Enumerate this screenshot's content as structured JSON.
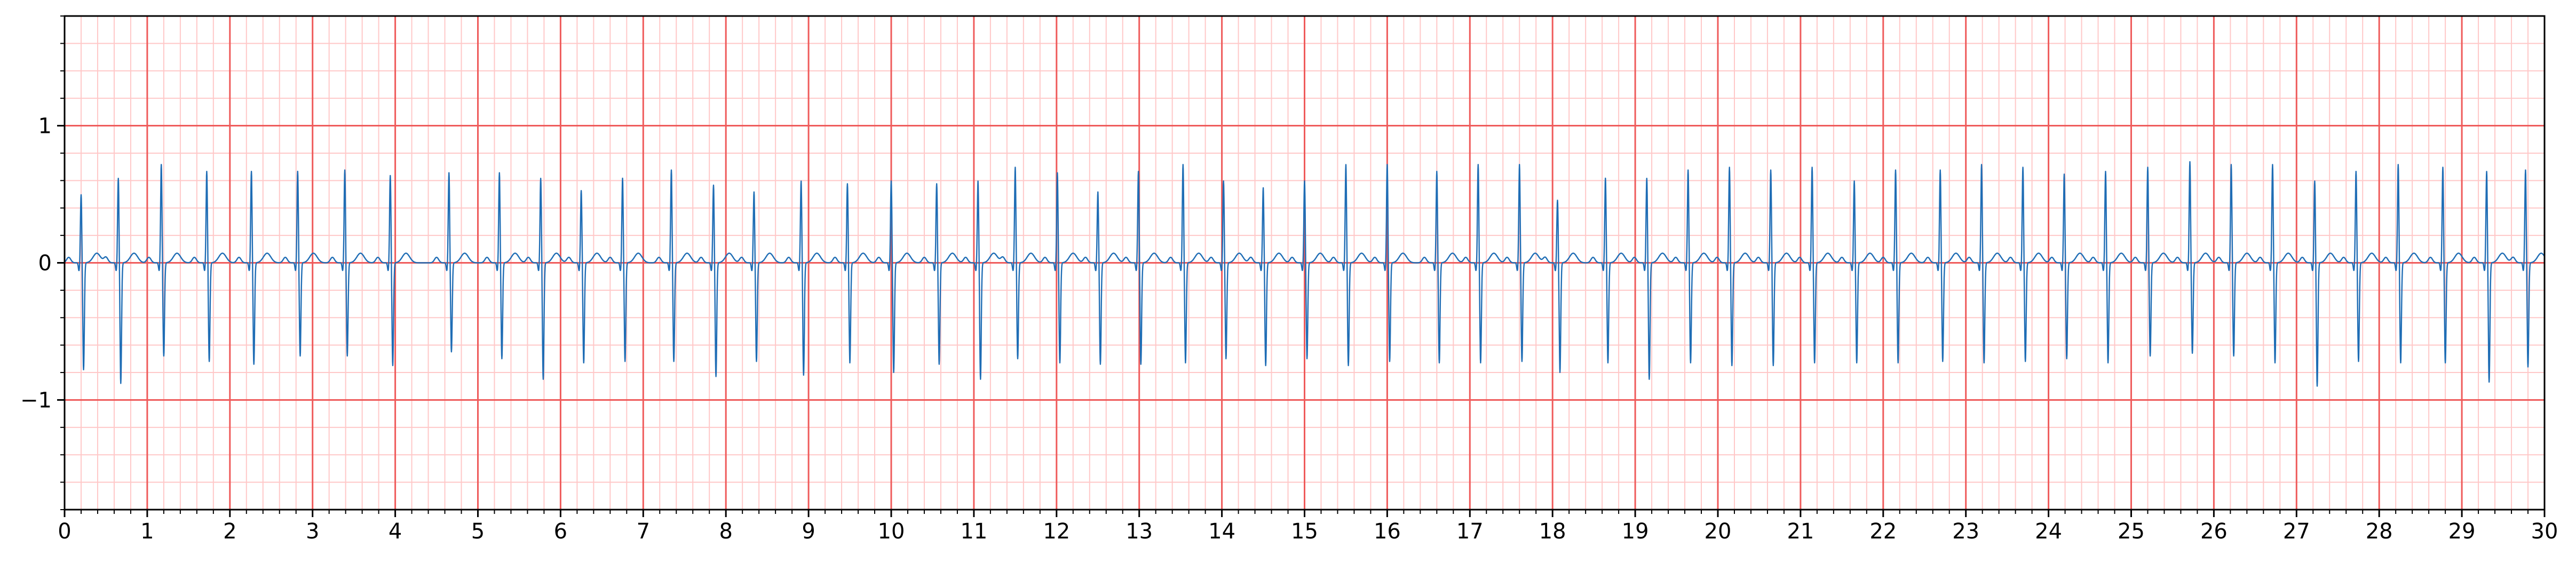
{
  "chart_data": {
    "type": "line",
    "title": "",
    "xlabel": "",
    "ylabel": "",
    "xlim": [
      0,
      30
    ],
    "ylim": [
      -1.8,
      1.8
    ],
    "xticks": [
      0,
      1,
      2,
      3,
      4,
      5,
      6,
      7,
      8,
      9,
      10,
      11,
      12,
      13,
      14,
      15,
      16,
      17,
      18,
      19,
      20,
      21,
      22,
      23,
      24,
      25,
      26,
      27,
      28,
      29,
      30
    ],
    "xtick_labels": [
      "0",
      "1",
      "2",
      "3",
      "4",
      "5",
      "6",
      "7",
      "8",
      "9",
      "10",
      "11",
      "12",
      "13",
      "14",
      "15",
      "16",
      "17",
      "18",
      "19",
      "20",
      "21",
      "22",
      "23",
      "24",
      "25",
      "26",
      "27",
      "28",
      "29",
      "30"
    ],
    "yticks": [
      -1,
      0,
      1
    ],
    "ytick_labels": [
      "−1",
      "0",
      "1"
    ],
    "grid": {
      "major_x_step": 1,
      "minor_x_step": 0.2,
      "major_y_step": 1,
      "minor_y_step": 0.2,
      "major_color": "#ef5b5b",
      "minor_color": "#ffc8c8"
    },
    "series": [
      {
        "color": "#1f6db5",
        "beat_times": [
          0.2,
          0.65,
          1.17,
          1.72,
          2.26,
          2.82,
          3.39,
          3.94,
          4.65,
          5.26,
          5.76,
          6.25,
          6.75,
          7.34,
          7.85,
          8.34,
          8.91,
          9.47,
          10.0,
          10.55,
          11.05,
          11.5,
          12.01,
          12.5,
          12.99,
          13.53,
          14.02,
          14.5,
          15.0,
          15.5,
          16.0,
          16.6,
          17.1,
          17.6,
          18.06,
          18.64,
          19.14,
          19.64,
          20.14,
          20.64,
          21.14,
          21.65,
          22.15,
          22.69,
          23.19,
          23.69,
          24.19,
          24.69,
          25.2,
          25.71,
          26.21,
          26.71,
          27.22,
          27.72,
          28.23,
          28.77,
          29.3,
          29.77
        ],
        "r_peaks": [
          0.5,
          0.62,
          0.72,
          0.67,
          0.67,
          0.67,
          0.68,
          0.64,
          0.66,
          0.66,
          0.62,
          0.53,
          0.62,
          0.68,
          0.57,
          0.52,
          0.6,
          0.58,
          0.6,
          0.58,
          0.6,
          0.7,
          0.66,
          0.52,
          0.67,
          0.72,
          0.6,
          0.55,
          0.6,
          0.72,
          0.72,
          0.67,
          0.72,
          0.72,
          0.46,
          0.62,
          0.62,
          0.68,
          0.7,
          0.68,
          0.7,
          0.6,
          0.68,
          0.68,
          0.72,
          0.7,
          0.65,
          0.67,
          0.7,
          0.74,
          0.72,
          0.72,
          0.6,
          0.67,
          0.72,
          0.7,
          0.67,
          0.68
        ],
        "s_troughs": [
          -0.78,
          -0.88,
          -0.68,
          -0.72,
          -0.74,
          -0.68,
          -0.68,
          -0.75,
          -0.65,
          -0.7,
          -0.85,
          -0.73,
          -0.72,
          -0.72,
          -0.83,
          -0.72,
          -0.82,
          -0.73,
          -0.8,
          -0.74,
          -0.85,
          -0.7,
          -0.73,
          -0.74,
          -0.74,
          -0.73,
          -0.7,
          -0.75,
          -0.7,
          -0.75,
          -0.72,
          -0.73,
          -0.73,
          -0.72,
          -0.8,
          -0.73,
          -0.85,
          -0.73,
          -0.75,
          -0.75,
          -0.73,
          -0.73,
          -0.73,
          -0.72,
          -0.73,
          -0.72,
          -0.7,
          -0.73,
          -0.68,
          -0.66,
          -0.68,
          -0.73,
          -0.9,
          -0.72,
          -0.73,
          -0.73,
          -0.87,
          -0.76
        ]
      }
    ]
  }
}
